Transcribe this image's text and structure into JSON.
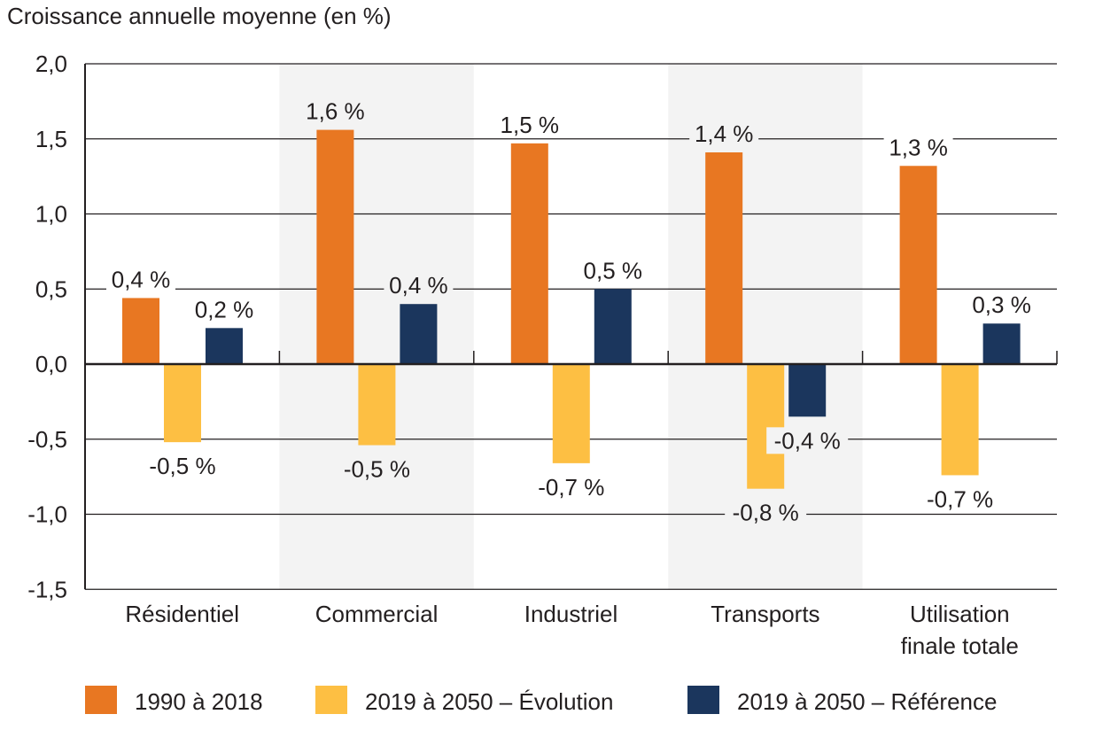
{
  "chart_data": {
    "type": "bar",
    "title": "Croissance annuelle moyenne (en %)",
    "categories": [
      "Résidentiel",
      "Commercial",
      "Industriel",
      "Transports",
      "Utilisation finale totale"
    ],
    "category_lines": [
      [
        "Résidentiel"
      ],
      [
        "Commercial"
      ],
      [
        "Industriel"
      ],
      [
        "Transports"
      ],
      [
        "Utilisation",
        "finale totale"
      ]
    ],
    "ylim": [
      -1.5,
      2.0
    ],
    "yticks": [
      2.0,
      1.5,
      1.0,
      0.5,
      0.0,
      -0.5,
      -1.0,
      -1.5
    ],
    "ytick_labels": [
      "2,0",
      "1,5",
      "1,0",
      "0,5",
      "0,0",
      "-0,5",
      "-1,0",
      "-1,5"
    ],
    "grid": true,
    "shaded_categories": [
      "Commercial",
      "Transports"
    ],
    "legend_position": "bottom",
    "series": [
      {
        "name": "1990 à 2018",
        "color": "#E87722",
        "values": [
          0.44,
          1.56,
          1.47,
          1.41,
          1.32
        ],
        "labels": [
          "0,4 %",
          "1,6 %",
          "1,5 %",
          "1,4 %",
          "1,3 %"
        ]
      },
      {
        "name": "2019 à 2050 – Évolution",
        "color": "#FDBF43",
        "values": [
          -0.52,
          -0.54,
          -0.66,
          -0.83,
          -0.74
        ],
        "labels": [
          "-0,5 %",
          "-0,5 %",
          "-0,7 %",
          "-0,8 %",
          "-0,7 %"
        ]
      },
      {
        "name": "2019 à 2050 – Référence",
        "color": "#1B365D",
        "values": [
          0.24,
          0.4,
          0.5,
          -0.35,
          0.27
        ],
        "labels": [
          "0,2 %",
          "0,4 %",
          "0,5 %",
          "-0,4 %",
          "0,3 %"
        ]
      }
    ],
    "colors": {
      "band": "#F3F3F3",
      "grid": "#231f20"
    }
  }
}
